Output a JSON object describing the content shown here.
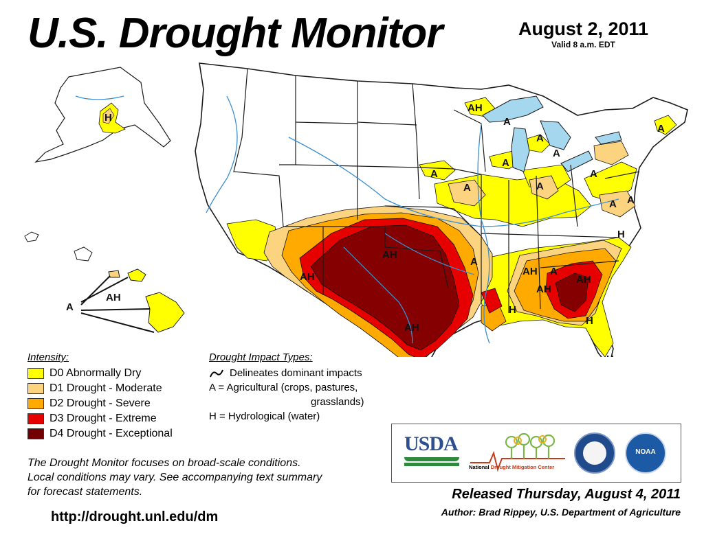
{
  "header": {
    "title": "U.S. Drought Monitor",
    "date": "August 2, 2011",
    "valid": "Valid 8 a.m. EDT"
  },
  "colors": {
    "d0": "#ffff00",
    "d1": "#fcd37f",
    "d2": "#ffaa00",
    "d3": "#e60000",
    "d4": "#730000",
    "water": "#a5d7ee",
    "rivers": "#3a8fd0",
    "boundary": "#1a1a1a"
  },
  "legend": {
    "heading": "Intensity:",
    "items": [
      {
        "code": "d0",
        "label": "D0 Abnormally Dry"
      },
      {
        "code": "d1",
        "label": "D1 Drought - Moderate"
      },
      {
        "code": "d2",
        "label": "D2 Drought - Severe"
      },
      {
        "code": "d3",
        "label": "D3 Drought - Extreme"
      },
      {
        "code": "d4",
        "label": "D4 Drought - Exceptional"
      }
    ]
  },
  "impacts": {
    "heading": "Drought Impact Types:",
    "delineates": "Delineates dominant impacts",
    "agricultural_1": "A = Agricultural (crops, pastures,",
    "agricultural_2": "grasslands)",
    "hydrological": "H = Hydrological (water)"
  },
  "map": {
    "labels": {
      "alaska": "H",
      "hawaii_a": "A",
      "hawaii_ah": "AH",
      "upper_michigan": "AH",
      "wisconsin": "A",
      "michigan_1": "A",
      "michigan_2": "A",
      "ohio_mi": "A",
      "iowa": "A",
      "illinois": "A",
      "indiana": "A",
      "pennsylvania": "A",
      "maryland": "A",
      "virginia": "A",
      "maine": "A",
      "new_mexico": "AH",
      "oklahoma": "AH",
      "arkansas": "A",
      "tennessee": "A",
      "texas": "AH",
      "north_carolina": "H",
      "georgia": "AH",
      "south_carolina": "AH",
      "alabama": "AH",
      "mississippi": "H",
      "florida_1": "H",
      "florida_2": "H"
    }
  },
  "footer": {
    "note_1": "The Drought Monitor focuses on broad-scale conditions.",
    "note_2": "Local conditions may vary. See accompanying text summary",
    "note_3": "for forecast statements.",
    "url": "http://drought.unl.edu/dm",
    "released": "Released Thursday, August 4, 2011",
    "author": "Author: Brad Rippey, U.S. Department of Agriculture"
  },
  "logos": {
    "usda": "USDA",
    "ndmc_1": "National",
    "ndmc_2": "Drought Mitigation Center",
    "noaa": "NOAA"
  }
}
